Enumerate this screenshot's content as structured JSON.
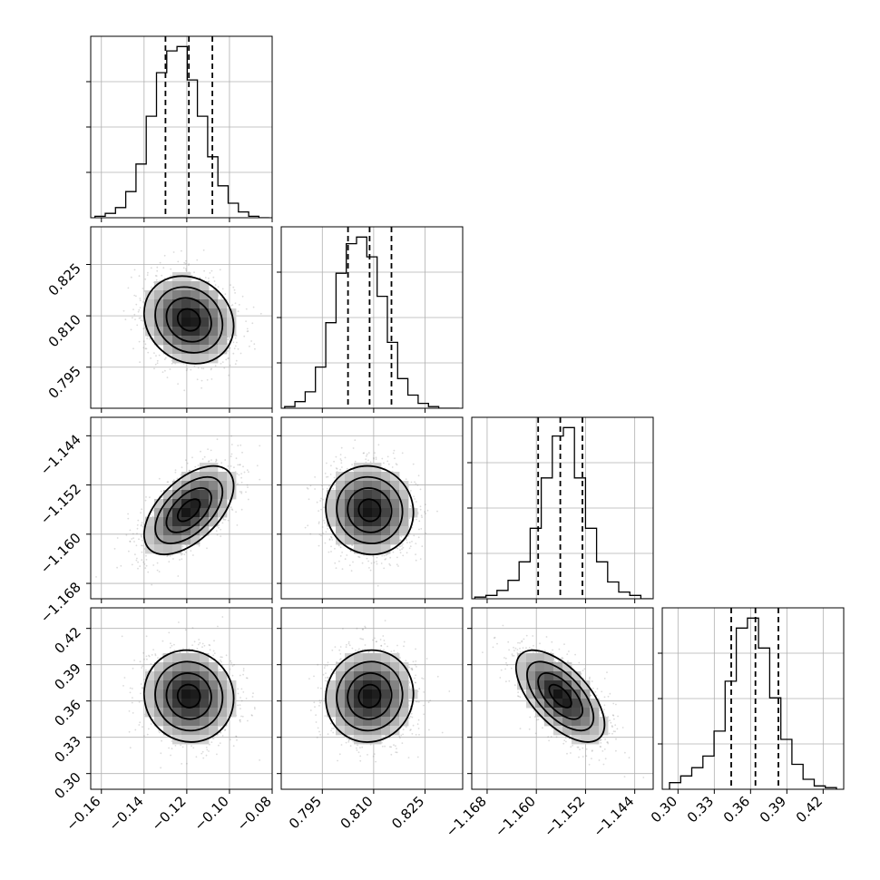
{
  "chart_data": {
    "type": "corner",
    "grid": true,
    "parameters": [
      {
        "id": "p0",
        "range": [
          -0.165,
          -0.08
        ],
        "ticks": [
          -0.16,
          -0.14,
          -0.12,
          -0.1,
          -0.08
        ],
        "tick_labels": [
          "−0.16",
          "−0.14",
          "−0.12",
          "−0.10",
          "−0.08"
        ],
        "quantiles": [
          -0.13,
          -0.119,
          -0.108
        ],
        "mean": -0.119,
        "sd": 0.0105
      },
      {
        "id": "p1",
        "range": [
          0.783,
          0.836
        ],
        "ticks": [
          0.795,
          0.81,
          0.825
        ],
        "tick_labels": [
          "0.795",
          "0.810",
          "0.825"
        ],
        "quantiles": [
          0.8025,
          0.8088,
          0.8152
        ],
        "mean": 0.8088,
        "sd": 0.0064
      },
      {
        "id": "p2",
        "range": [
          -1.1705,
          -1.141
        ],
        "ticks": [
          -1.168,
          -1.16,
          -1.152,
          -1.144
        ],
        "tick_labels": [
          "−1.168",
          "−1.160",
          "−1.152",
          "−1.144"
        ],
        "quantiles": [
          -1.1597,
          -1.1561,
          -1.1525
        ],
        "mean": -1.1561,
        "sd": 0.0036
      },
      {
        "id": "p3",
        "range": [
          0.287,
          0.437
        ],
        "ticks": [
          0.3,
          0.33,
          0.36,
          0.39,
          0.42
        ],
        "tick_labels": [
          "0.30",
          "0.33",
          "0.36",
          "0.39",
          "0.42"
        ],
        "quantiles": [
          0.344,
          0.364,
          0.383
        ],
        "mean": 0.364,
        "sd": 0.019
      }
    ],
    "histograms": [
      {
        "param": "p0",
        "bin_edges": [
          -0.163,
          -0.1582,
          -0.1534,
          -0.1486,
          -0.1438,
          -0.139,
          -0.1342,
          -0.1294,
          -0.1246,
          -0.1198,
          -0.115,
          -0.1102,
          -0.1054,
          -0.1006,
          -0.0958,
          -0.091,
          -0.0862,
          -0.0814
        ],
        "counts": [
          1,
          3,
          7,
          18,
          37,
          70,
          100,
          115,
          118,
          95,
          70,
          42,
          22,
          10,
          4,
          1,
          0
        ]
      },
      {
        "param": "p1",
        "bin_edges": [
          0.784,
          0.787,
          0.79,
          0.793,
          0.796,
          0.799,
          0.802,
          0.805,
          0.808,
          0.811,
          0.814,
          0.817,
          0.82,
          0.823,
          0.826,
          0.829,
          0.832,
          0.835
        ],
        "counts": [
          1,
          4,
          10,
          25,
          52,
          82,
          100,
          104,
          92,
          68,
          40,
          18,
          8,
          3,
          1,
          0,
          0
        ]
      },
      {
        "param": "p2",
        "bin_edges": [
          -1.17,
          -1.1682,
          -1.1664,
          -1.1646,
          -1.1628,
          -1.161,
          -1.1592,
          -1.1574,
          -1.1556,
          -1.1538,
          -1.152,
          -1.1502,
          -1.1484,
          -1.1466,
          -1.1448,
          -1.143,
          -1.1412
        ],
        "counts": [
          1,
          2,
          5,
          11,
          22,
          42,
          72,
          97,
          102,
          72,
          42,
          22,
          10,
          4,
          2,
          0
        ]
      },
      {
        "param": "p3",
        "bin_edges": [
          0.293,
          0.3022,
          0.3114,
          0.3206,
          0.3298,
          0.339,
          0.3482,
          0.3574,
          0.3666,
          0.3758,
          0.385,
          0.3942,
          0.4034,
          0.4126,
          0.4218,
          0.431
        ],
        "counts": [
          4,
          8,
          13,
          20,
          35,
          65,
          97,
          103,
          85,
          55,
          30,
          15,
          6,
          2,
          1
        ]
      }
    ],
    "pair_correlations": [
      {
        "x": "p0",
        "y": "p1",
        "rho": -0.15
      },
      {
        "x": "p0",
        "y": "p2",
        "rho": 0.55
      },
      {
        "x": "p1",
        "y": "p2",
        "rho": -0.05
      },
      {
        "x": "p0",
        "y": "p3",
        "rho": -0.05
      },
      {
        "x": "p1",
        "y": "p3",
        "rho": 0.05
      },
      {
        "x": "p2",
        "y": "p3",
        "rho": -0.62
      }
    ],
    "contour_levels_sigma": [
      0.5,
      1.0,
      1.5,
      2.0
    ]
  }
}
